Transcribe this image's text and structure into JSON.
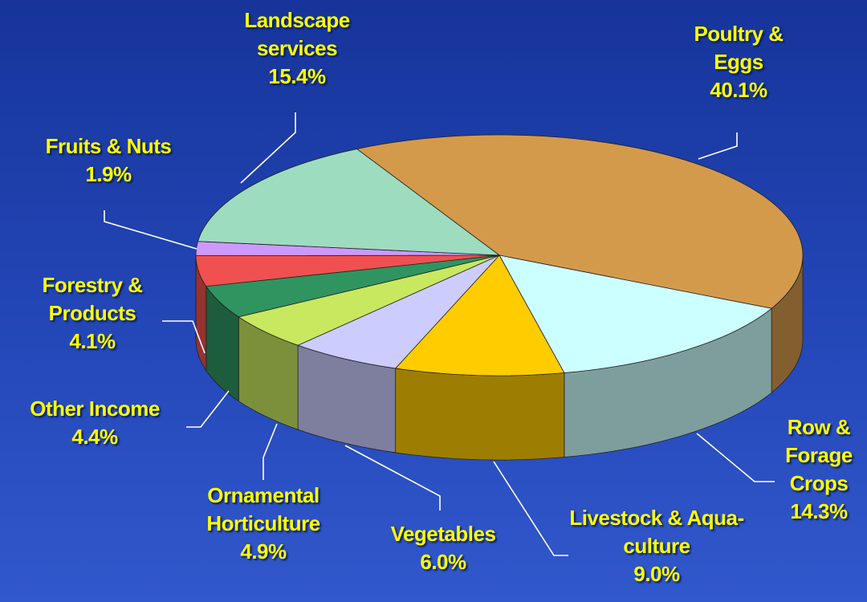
{
  "chart_data": {
    "type": "pie3d",
    "categories": [
      "Poultry & Eggs",
      "Row & Forage Crops",
      "Livestock & Aqua-culture",
      "Vegetables",
      "Ornamental Horticulture",
      "Other Income",
      "Forestry & Products",
      "Fruits & Nuts",
      "Landscape services"
    ],
    "values": [
      40.1,
      14.3,
      9.0,
      6.0,
      4.9,
      4.4,
      4.1,
      1.9,
      15.4
    ],
    "value_labels": [
      "40.1%",
      "14.3%",
      "9.0%",
      "6.0%",
      "4.9%",
      "4.4%",
      "4.1%",
      "1.9%",
      "15.4%"
    ],
    "colors": [
      "#d49a4c",
      "#ccffff",
      "#ffcc00",
      "#ccccff",
      "#c8e860",
      "#2f9460",
      "#f05050",
      "#cc99ff",
      "#9edcc0"
    ]
  }
}
